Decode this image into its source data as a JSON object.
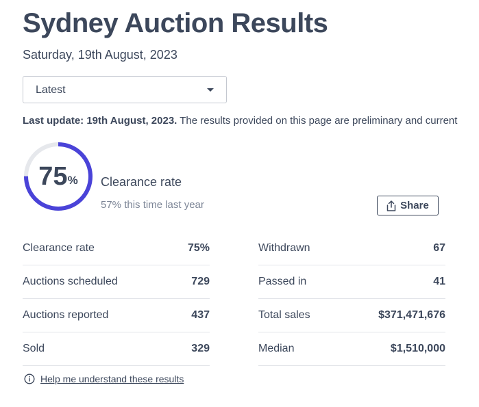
{
  "header": {
    "title": "Sydney Auction Results",
    "date": "Saturday, 19th August, 2023"
  },
  "filter": {
    "selected": "Latest"
  },
  "update_note": {
    "bold": "Last update: 19th August, 2023.",
    "text": " The results provided on this page are preliminary and current"
  },
  "clearance": {
    "rate": 75,
    "rate_number": "75",
    "rate_unit": "%",
    "label": "Clearance rate",
    "comparison": "57% this time last year",
    "colors": {
      "arc": "#4a43d8",
      "track": "#e6e8ec"
    }
  },
  "share_button": {
    "label": "Share"
  },
  "stats_left": [
    {
      "label": "Clearance rate",
      "value": "75%"
    },
    {
      "label": "Auctions scheduled",
      "value": "729"
    },
    {
      "label": "Auctions reported",
      "value": "437"
    },
    {
      "label": "Sold",
      "value": "329"
    }
  ],
  "stats_right": [
    {
      "label": "Withdrawn",
      "value": "67"
    },
    {
      "label": "Passed in",
      "value": "41"
    },
    {
      "label": "Total sales",
      "value": "$371,471,676"
    },
    {
      "label": "Median",
      "value": "$1,510,000"
    }
  ],
  "help_link": {
    "label": "Help me understand these results",
    "icon": "info-icon"
  }
}
